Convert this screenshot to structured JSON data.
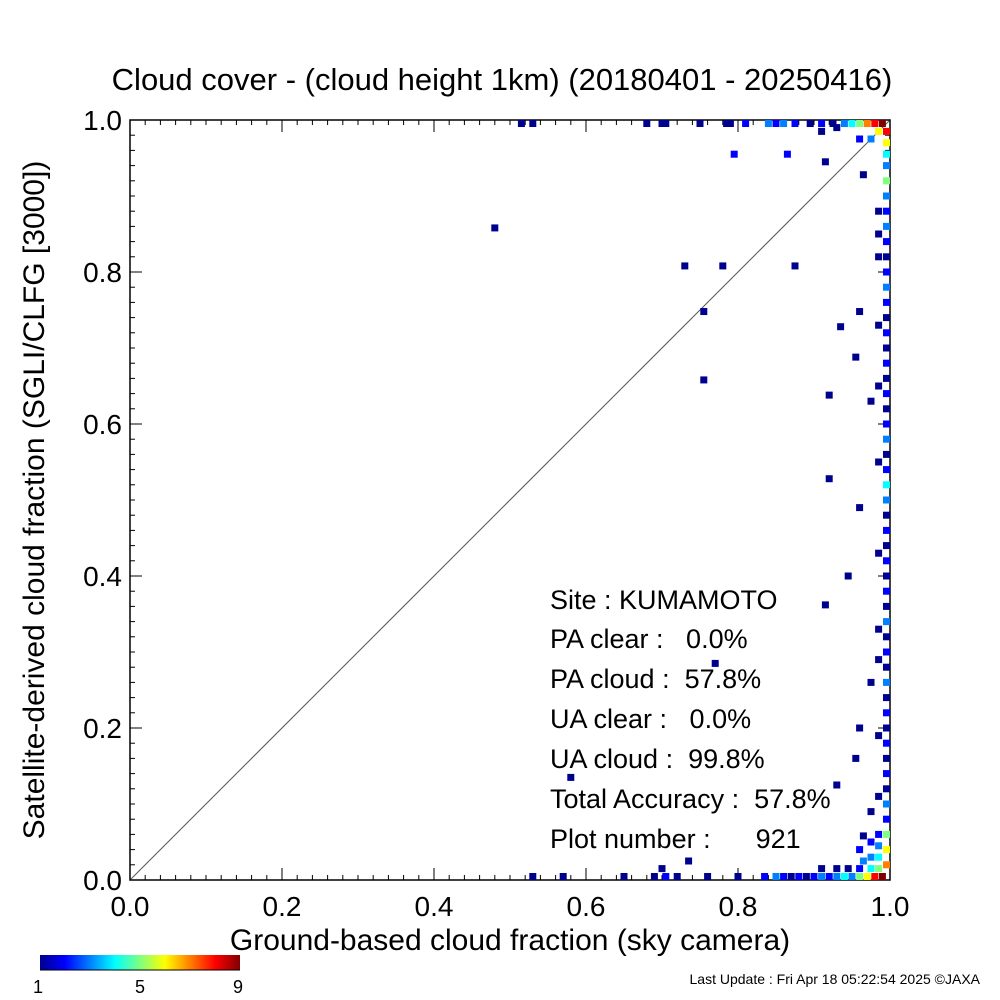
{
  "chart_data": {
    "type": "heatmap",
    "title": "Cloud cover - (cloud height 1km)  (20180401 - 20250416)",
    "xlabel": "Ground-based cloud fraction (sky camera)",
    "ylabel": "Satellite-derived cloud fraction (SGLI/CLFG [3000])",
    "xlim": [
      0.0,
      1.0
    ],
    "ylim": [
      0.0,
      1.0
    ],
    "x_ticks": [
      "0.0",
      "0.2",
      "0.4",
      "0.6",
      "0.8",
      "1.0"
    ],
    "y_ticks": [
      "0.0",
      "0.2",
      "0.4",
      "0.6",
      "0.8",
      "1.0"
    ],
    "diagonal_line": true,
    "colorbar": {
      "min": 1,
      "max": 9,
      "tick_labels": [
        "1",
        "5",
        "9"
      ]
    },
    "points": [
      {
        "x": 0.48,
        "y": 0.858,
        "count": 1
      },
      {
        "x": 0.73,
        "y": 0.808,
        "count": 1
      },
      {
        "x": 0.78,
        "y": 0.808,
        "count": 1
      },
      {
        "x": 0.875,
        "y": 0.808,
        "count": 1
      },
      {
        "x": 0.755,
        "y": 0.748,
        "count": 1
      },
      {
        "x": 0.755,
        "y": 0.658,
        "count": 1
      },
      {
        "x": 0.795,
        "y": 0.955,
        "count": 2
      },
      {
        "x": 0.865,
        "y": 0.955,
        "count": 2
      },
      {
        "x": 0.915,
        "y": 0.945,
        "count": 1
      },
      {
        "x": 0.92,
        "y": 0.638,
        "count": 1
      },
      {
        "x": 0.92,
        "y": 0.528,
        "count": 1
      },
      {
        "x": 0.945,
        "y": 0.4,
        "count": 1
      },
      {
        "x": 0.915,
        "y": 0.362,
        "count": 1
      },
      {
        "x": 0.935,
        "y": 0.728,
        "count": 1
      },
      {
        "x": 0.955,
        "y": 0.688,
        "count": 1
      },
      {
        "x": 0.96,
        "y": 0.748,
        "count": 1
      },
      {
        "x": 0.96,
        "y": 0.49,
        "count": 1
      },
      {
        "x": 0.58,
        "y": 0.135,
        "count": 1
      },
      {
        "x": 0.77,
        "y": 0.285,
        "count": 1
      },
      {
        "x": 0.735,
        "y": 0.025,
        "count": 1
      },
      {
        "x": 0.96,
        "y": 0.2,
        "count": 1
      },
      {
        "x": 0.955,
        "y": 0.16,
        "count": 1
      },
      {
        "x": 0.93,
        "y": 0.125,
        "count": 1
      },
      {
        "x": 0.965,
        "y": 0.928,
        "count": 1
      },
      {
        "x": 0.96,
        "y": 0.975,
        "count": 2
      },
      {
        "x": 0.515,
        "y": 0.998,
        "count": 1
      },
      {
        "x": 0.53,
        "y": 0.998,
        "count": 1
      },
      {
        "x": 0.68,
        "y": 0.998,
        "count": 1
      },
      {
        "x": 0.7,
        "y": 0.998,
        "count": 1
      },
      {
        "x": 0.705,
        "y": 0.998,
        "count": 1
      },
      {
        "x": 0.75,
        "y": 0.998,
        "count": 1
      },
      {
        "x": 0.785,
        "y": 0.998,
        "count": 1
      },
      {
        "x": 0.79,
        "y": 0.998,
        "count": 1
      },
      {
        "x": 0.81,
        "y": 0.998,
        "count": 2
      },
      {
        "x": 0.84,
        "y": 0.998,
        "count": 3
      },
      {
        "x": 0.85,
        "y": 0.998,
        "count": 2
      },
      {
        "x": 0.86,
        "y": 0.998,
        "count": 3
      },
      {
        "x": 0.875,
        "y": 0.998,
        "count": 2
      },
      {
        "x": 0.895,
        "y": 0.998,
        "count": 1
      },
      {
        "x": 0.91,
        "y": 0.998,
        "count": 2
      },
      {
        "x": 0.925,
        "y": 0.998,
        "count": 1
      },
      {
        "x": 0.94,
        "y": 0.998,
        "count": 3
      },
      {
        "x": 0.95,
        "y": 0.998,
        "count": 4
      },
      {
        "x": 0.96,
        "y": 0.998,
        "count": 5
      },
      {
        "x": 0.97,
        "y": 0.998,
        "count": 7
      },
      {
        "x": 0.98,
        "y": 0.998,
        "count": 8
      },
      {
        "x": 0.99,
        "y": 0.998,
        "count": 9
      },
      {
        "x": 0.91,
        "y": 0.985,
        "count": 1
      },
      {
        "x": 0.93,
        "y": 0.99,
        "count": 1
      },
      {
        "x": 0.975,
        "y": 0.975,
        "count": 3
      },
      {
        "x": 0.985,
        "y": 0.985,
        "count": 6
      },
      {
        "x": 0.998,
        "y": 0.985,
        "count": 8
      },
      {
        "x": 0.998,
        "y": 0.97,
        "count": 6
      },
      {
        "x": 0.998,
        "y": 0.955,
        "count": 4
      },
      {
        "x": 0.998,
        "y": 0.94,
        "count": 3
      },
      {
        "x": 0.998,
        "y": 0.92,
        "count": 5
      },
      {
        "x": 0.998,
        "y": 0.9,
        "count": 3
      },
      {
        "x": 0.998,
        "y": 0.88,
        "count": 2
      },
      {
        "x": 0.998,
        "y": 0.86,
        "count": 3
      },
      {
        "x": 0.998,
        "y": 0.84,
        "count": 2
      },
      {
        "x": 0.998,
        "y": 0.82,
        "count": 1
      },
      {
        "x": 0.998,
        "y": 0.8,
        "count": 2
      },
      {
        "x": 0.998,
        "y": 0.78,
        "count": 3
      },
      {
        "x": 0.998,
        "y": 0.76,
        "count": 2
      },
      {
        "x": 0.998,
        "y": 0.74,
        "count": 1
      },
      {
        "x": 0.998,
        "y": 0.72,
        "count": 2
      },
      {
        "x": 0.998,
        "y": 0.7,
        "count": 1
      },
      {
        "x": 0.998,
        "y": 0.68,
        "count": 2
      },
      {
        "x": 0.998,
        "y": 0.66,
        "count": 1
      },
      {
        "x": 0.998,
        "y": 0.64,
        "count": 2
      },
      {
        "x": 0.998,
        "y": 0.62,
        "count": 1
      },
      {
        "x": 0.998,
        "y": 0.6,
        "count": 2
      },
      {
        "x": 0.998,
        "y": 0.58,
        "count": 3
      },
      {
        "x": 0.998,
        "y": 0.56,
        "count": 1
      },
      {
        "x": 0.998,
        "y": 0.54,
        "count": 2
      },
      {
        "x": 0.998,
        "y": 0.52,
        "count": 4
      },
      {
        "x": 0.998,
        "y": 0.5,
        "count": 3
      },
      {
        "x": 0.998,
        "y": 0.48,
        "count": 1
      },
      {
        "x": 0.998,
        "y": 0.46,
        "count": 2
      },
      {
        "x": 0.998,
        "y": 0.44,
        "count": 1
      },
      {
        "x": 0.998,
        "y": 0.42,
        "count": 2
      },
      {
        "x": 0.998,
        "y": 0.4,
        "count": 1
      },
      {
        "x": 0.998,
        "y": 0.38,
        "count": 2
      },
      {
        "x": 0.998,
        "y": 0.36,
        "count": 1
      },
      {
        "x": 0.998,
        "y": 0.34,
        "count": 3
      },
      {
        "x": 0.998,
        "y": 0.32,
        "count": 1
      },
      {
        "x": 0.998,
        "y": 0.3,
        "count": 2
      },
      {
        "x": 0.998,
        "y": 0.28,
        "count": 1
      },
      {
        "x": 0.998,
        "y": 0.26,
        "count": 3
      },
      {
        "x": 0.998,
        "y": 0.24,
        "count": 1
      },
      {
        "x": 0.998,
        "y": 0.22,
        "count": 2
      },
      {
        "x": 0.998,
        "y": 0.2,
        "count": 1
      },
      {
        "x": 0.998,
        "y": 0.18,
        "count": 2
      },
      {
        "x": 0.998,
        "y": 0.16,
        "count": 1
      },
      {
        "x": 0.998,
        "y": 0.14,
        "count": 2
      },
      {
        "x": 0.998,
        "y": 0.12,
        "count": 1
      },
      {
        "x": 0.998,
        "y": 0.1,
        "count": 3
      },
      {
        "x": 0.998,
        "y": 0.08,
        "count": 2
      },
      {
        "x": 0.998,
        "y": 0.06,
        "count": 5
      },
      {
        "x": 0.998,
        "y": 0.04,
        "count": 6
      },
      {
        "x": 0.998,
        "y": 0.02,
        "count": 7
      },
      {
        "x": 0.985,
        "y": 0.88,
        "count": 1
      },
      {
        "x": 0.985,
        "y": 0.85,
        "count": 1
      },
      {
        "x": 0.985,
        "y": 0.82,
        "count": 1
      },
      {
        "x": 0.985,
        "y": 0.73,
        "count": 1
      },
      {
        "x": 0.985,
        "y": 0.65,
        "count": 1
      },
      {
        "x": 0.985,
        "y": 0.55,
        "count": 1
      },
      {
        "x": 0.985,
        "y": 0.43,
        "count": 1
      },
      {
        "x": 0.985,
        "y": 0.33,
        "count": 1
      },
      {
        "x": 0.985,
        "y": 0.29,
        "count": 1
      },
      {
        "x": 0.985,
        "y": 0.19,
        "count": 1
      },
      {
        "x": 0.985,
        "y": 0.11,
        "count": 1
      },
      {
        "x": 0.975,
        "y": 0.63,
        "count": 1
      },
      {
        "x": 0.975,
        "y": 0.26,
        "count": 1
      },
      {
        "x": 0.975,
        "y": 0.09,
        "count": 1
      },
      {
        "x": 0.985,
        "y": 0.06,
        "count": 2
      },
      {
        "x": 0.975,
        "y": 0.05,
        "count": 2
      },
      {
        "x": 0.985,
        "y": 0.045,
        "count": 3
      },
      {
        "x": 0.96,
        "y": 0.04,
        "count": 2
      },
      {
        "x": 0.965,
        "y": 0.058,
        "count": 1
      },
      {
        "x": 0.985,
        "y": 0.03,
        "count": 4
      },
      {
        "x": 0.975,
        "y": 0.03,
        "count": 3
      },
      {
        "x": 0.965,
        "y": 0.025,
        "count": 3
      },
      {
        "x": 0.985,
        "y": 0.015,
        "count": 5
      },
      {
        "x": 0.975,
        "y": 0.015,
        "count": 4
      },
      {
        "x": 0.96,
        "y": 0.015,
        "count": 2
      },
      {
        "x": 0.945,
        "y": 0.015,
        "count": 1
      },
      {
        "x": 0.93,
        "y": 0.015,
        "count": 1
      },
      {
        "x": 0.91,
        "y": 0.015,
        "count": 1
      },
      {
        "x": 0.53,
        "y": 0.002,
        "count": 1
      },
      {
        "x": 0.57,
        "y": 0.002,
        "count": 1
      },
      {
        "x": 0.65,
        "y": 0.002,
        "count": 1
      },
      {
        "x": 0.69,
        "y": 0.002,
        "count": 1
      },
      {
        "x": 0.705,
        "y": 0.002,
        "count": 2
      },
      {
        "x": 0.7,
        "y": 0.015,
        "count": 1
      },
      {
        "x": 0.72,
        "y": 0.002,
        "count": 1
      },
      {
        "x": 0.76,
        "y": 0.002,
        "count": 1
      },
      {
        "x": 0.8,
        "y": 0.002,
        "count": 1
      },
      {
        "x": 0.835,
        "y": 0.002,
        "count": 2
      },
      {
        "x": 0.85,
        "y": 0.002,
        "count": 3
      },
      {
        "x": 0.86,
        "y": 0.002,
        "count": 2
      },
      {
        "x": 0.87,
        "y": 0.002,
        "count": 1
      },
      {
        "x": 0.88,
        "y": 0.002,
        "count": 2
      },
      {
        "x": 0.89,
        "y": 0.002,
        "count": 1
      },
      {
        "x": 0.9,
        "y": 0.002,
        "count": 2
      },
      {
        "x": 0.91,
        "y": 0.002,
        "count": 3
      },
      {
        "x": 0.92,
        "y": 0.002,
        "count": 2
      },
      {
        "x": 0.93,
        "y": 0.002,
        "count": 3
      },
      {
        "x": 0.94,
        "y": 0.002,
        "count": 4
      },
      {
        "x": 0.95,
        "y": 0.002,
        "count": 3
      },
      {
        "x": 0.96,
        "y": 0.002,
        "count": 5
      },
      {
        "x": 0.97,
        "y": 0.002,
        "count": 6
      },
      {
        "x": 0.98,
        "y": 0.002,
        "count": 8
      },
      {
        "x": 0.99,
        "y": 0.002,
        "count": 9
      }
    ]
  },
  "stats": {
    "site": "Site : KUMAMOTO",
    "pa_clear": "PA clear :   0.0%",
    "pa_cloud": "PA cloud :  57.8%",
    "ua_clear": "UA clear :   0.0%",
    "ua_cloud": "UA cloud :  99.8%",
    "total_accuracy": "Total Accuracy :  57.8%",
    "plot_number": "Plot number :      921"
  },
  "footer": {
    "last_update": "Last Update : Fri Apr 18 05:22:54 2025  ©JAXA"
  }
}
